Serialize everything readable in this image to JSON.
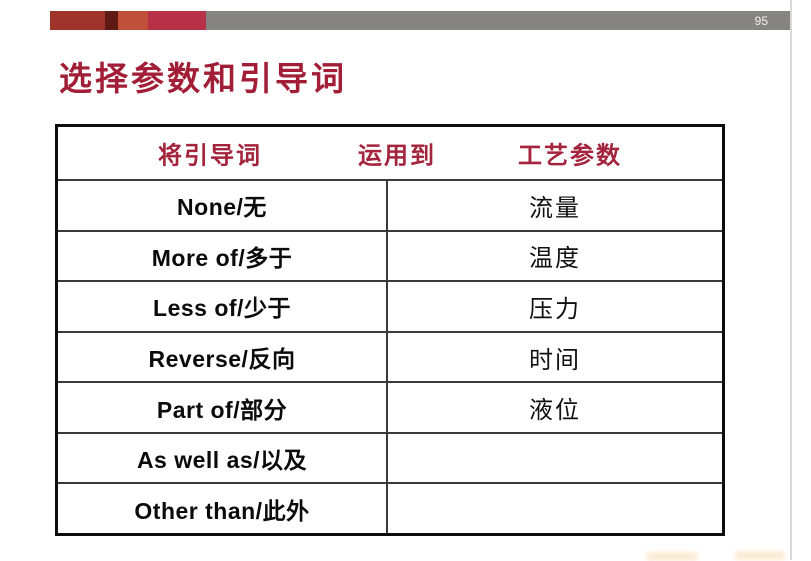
{
  "page_number": "95",
  "title": "选择参数和引导词",
  "top_bar": {
    "segment_colors": {
      "seg1": "#a0342a",
      "seg2": "#5e1a13",
      "seg3": "#c1503b",
      "seg4": "#b63147",
      "gray": "#868383"
    }
  },
  "colors": {
    "accent_red": "#a21e36",
    "header_text_red": "#a3243c",
    "table_border": "#0d0d0d",
    "background": "#ffffff"
  },
  "table": {
    "header": {
      "col1": "将引导词",
      "col2": "运用到",
      "col3": "工艺参数"
    },
    "rows": [
      {
        "guide_word": "None/无",
        "parameter": "流量"
      },
      {
        "guide_word": "More of/多于",
        "parameter": "温度"
      },
      {
        "guide_word": "Less of/少于",
        "parameter": "压力"
      },
      {
        "guide_word": "Reverse/反向",
        "parameter": "时间"
      },
      {
        "guide_word": "Part of/部分",
        "parameter": "液位"
      },
      {
        "guide_word": "As well as/以及",
        "parameter": ""
      },
      {
        "guide_word": "Other than/此外",
        "parameter": ""
      }
    ]
  }
}
